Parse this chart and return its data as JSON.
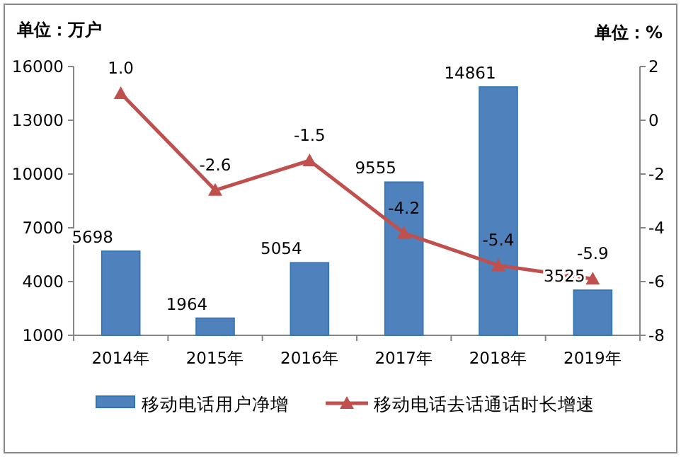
{
  "chart_data": {
    "type": "bar",
    "ylabel": "单位：万户",
    "y2label": "单位：%",
    "categories": [
      "2014年",
      "2015年",
      "2016年",
      "2017年",
      "2018年",
      "2019年"
    ],
    "series": [
      {
        "name": "移动电话用户净增",
        "color": "#4f81bd",
        "values": [
          5698,
          1964,
          5054,
          9555,
          14861,
          3525
        ]
      },
      {
        "name": "移动电话去话通话时长增速",
        "type": "line",
        "axis": "y2",
        "color": "#c0504d",
        "marker": "triangle",
        "values": [
          1.0,
          -2.6,
          -1.5,
          -4.2,
          -5.4,
          -5.9
        ],
        "value_labels": [
          "1.0",
          "-2.6",
          "-1.5",
          "-4.2",
          "-5.4",
          "-5.9"
        ]
      }
    ],
    "ylim": [
      1000,
      16000
    ],
    "yticks": [
      1000,
      4000,
      7000,
      10000,
      13000,
      16000
    ],
    "y2lim": [
      -8,
      2
    ],
    "y2ticks": [
      -8,
      -6,
      -4,
      -2,
      0,
      2
    ],
    "data_labels": true,
    "grid": false,
    "legend": "bottom"
  }
}
